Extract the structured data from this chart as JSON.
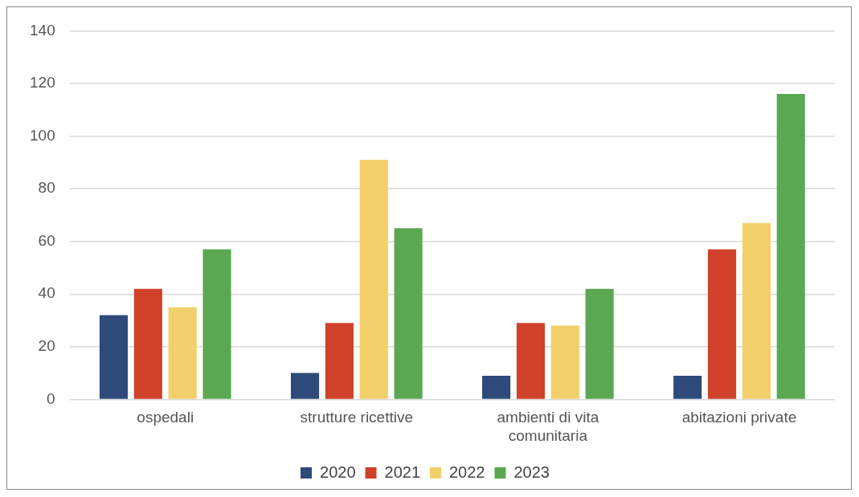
{
  "chart_data": {
    "type": "bar",
    "categories": [
      "ospedali",
      "strutture ricettive",
      "ambienti di vita comunitaria",
      "abitazioni private"
    ],
    "series": [
      {
        "name": "2020",
        "color": "#2e4a7a",
        "values": [
          32,
          10,
          9,
          9
        ]
      },
      {
        "name": "2021",
        "color": "#d0412a",
        "values": [
          42,
          29,
          29,
          57
        ]
      },
      {
        "name": "2022",
        "color": "#f2cf6a",
        "values": [
          35,
          91,
          28,
          67
        ]
      },
      {
        "name": "2023",
        "color": "#5ba852",
        "values": [
          57,
          65,
          42,
          116
        ]
      }
    ],
    "ylim": [
      0,
      140
    ],
    "yticks": [
      0,
      20,
      40,
      60,
      80,
      100,
      120,
      140
    ],
    "grid": "y",
    "legend": "bottom"
  }
}
